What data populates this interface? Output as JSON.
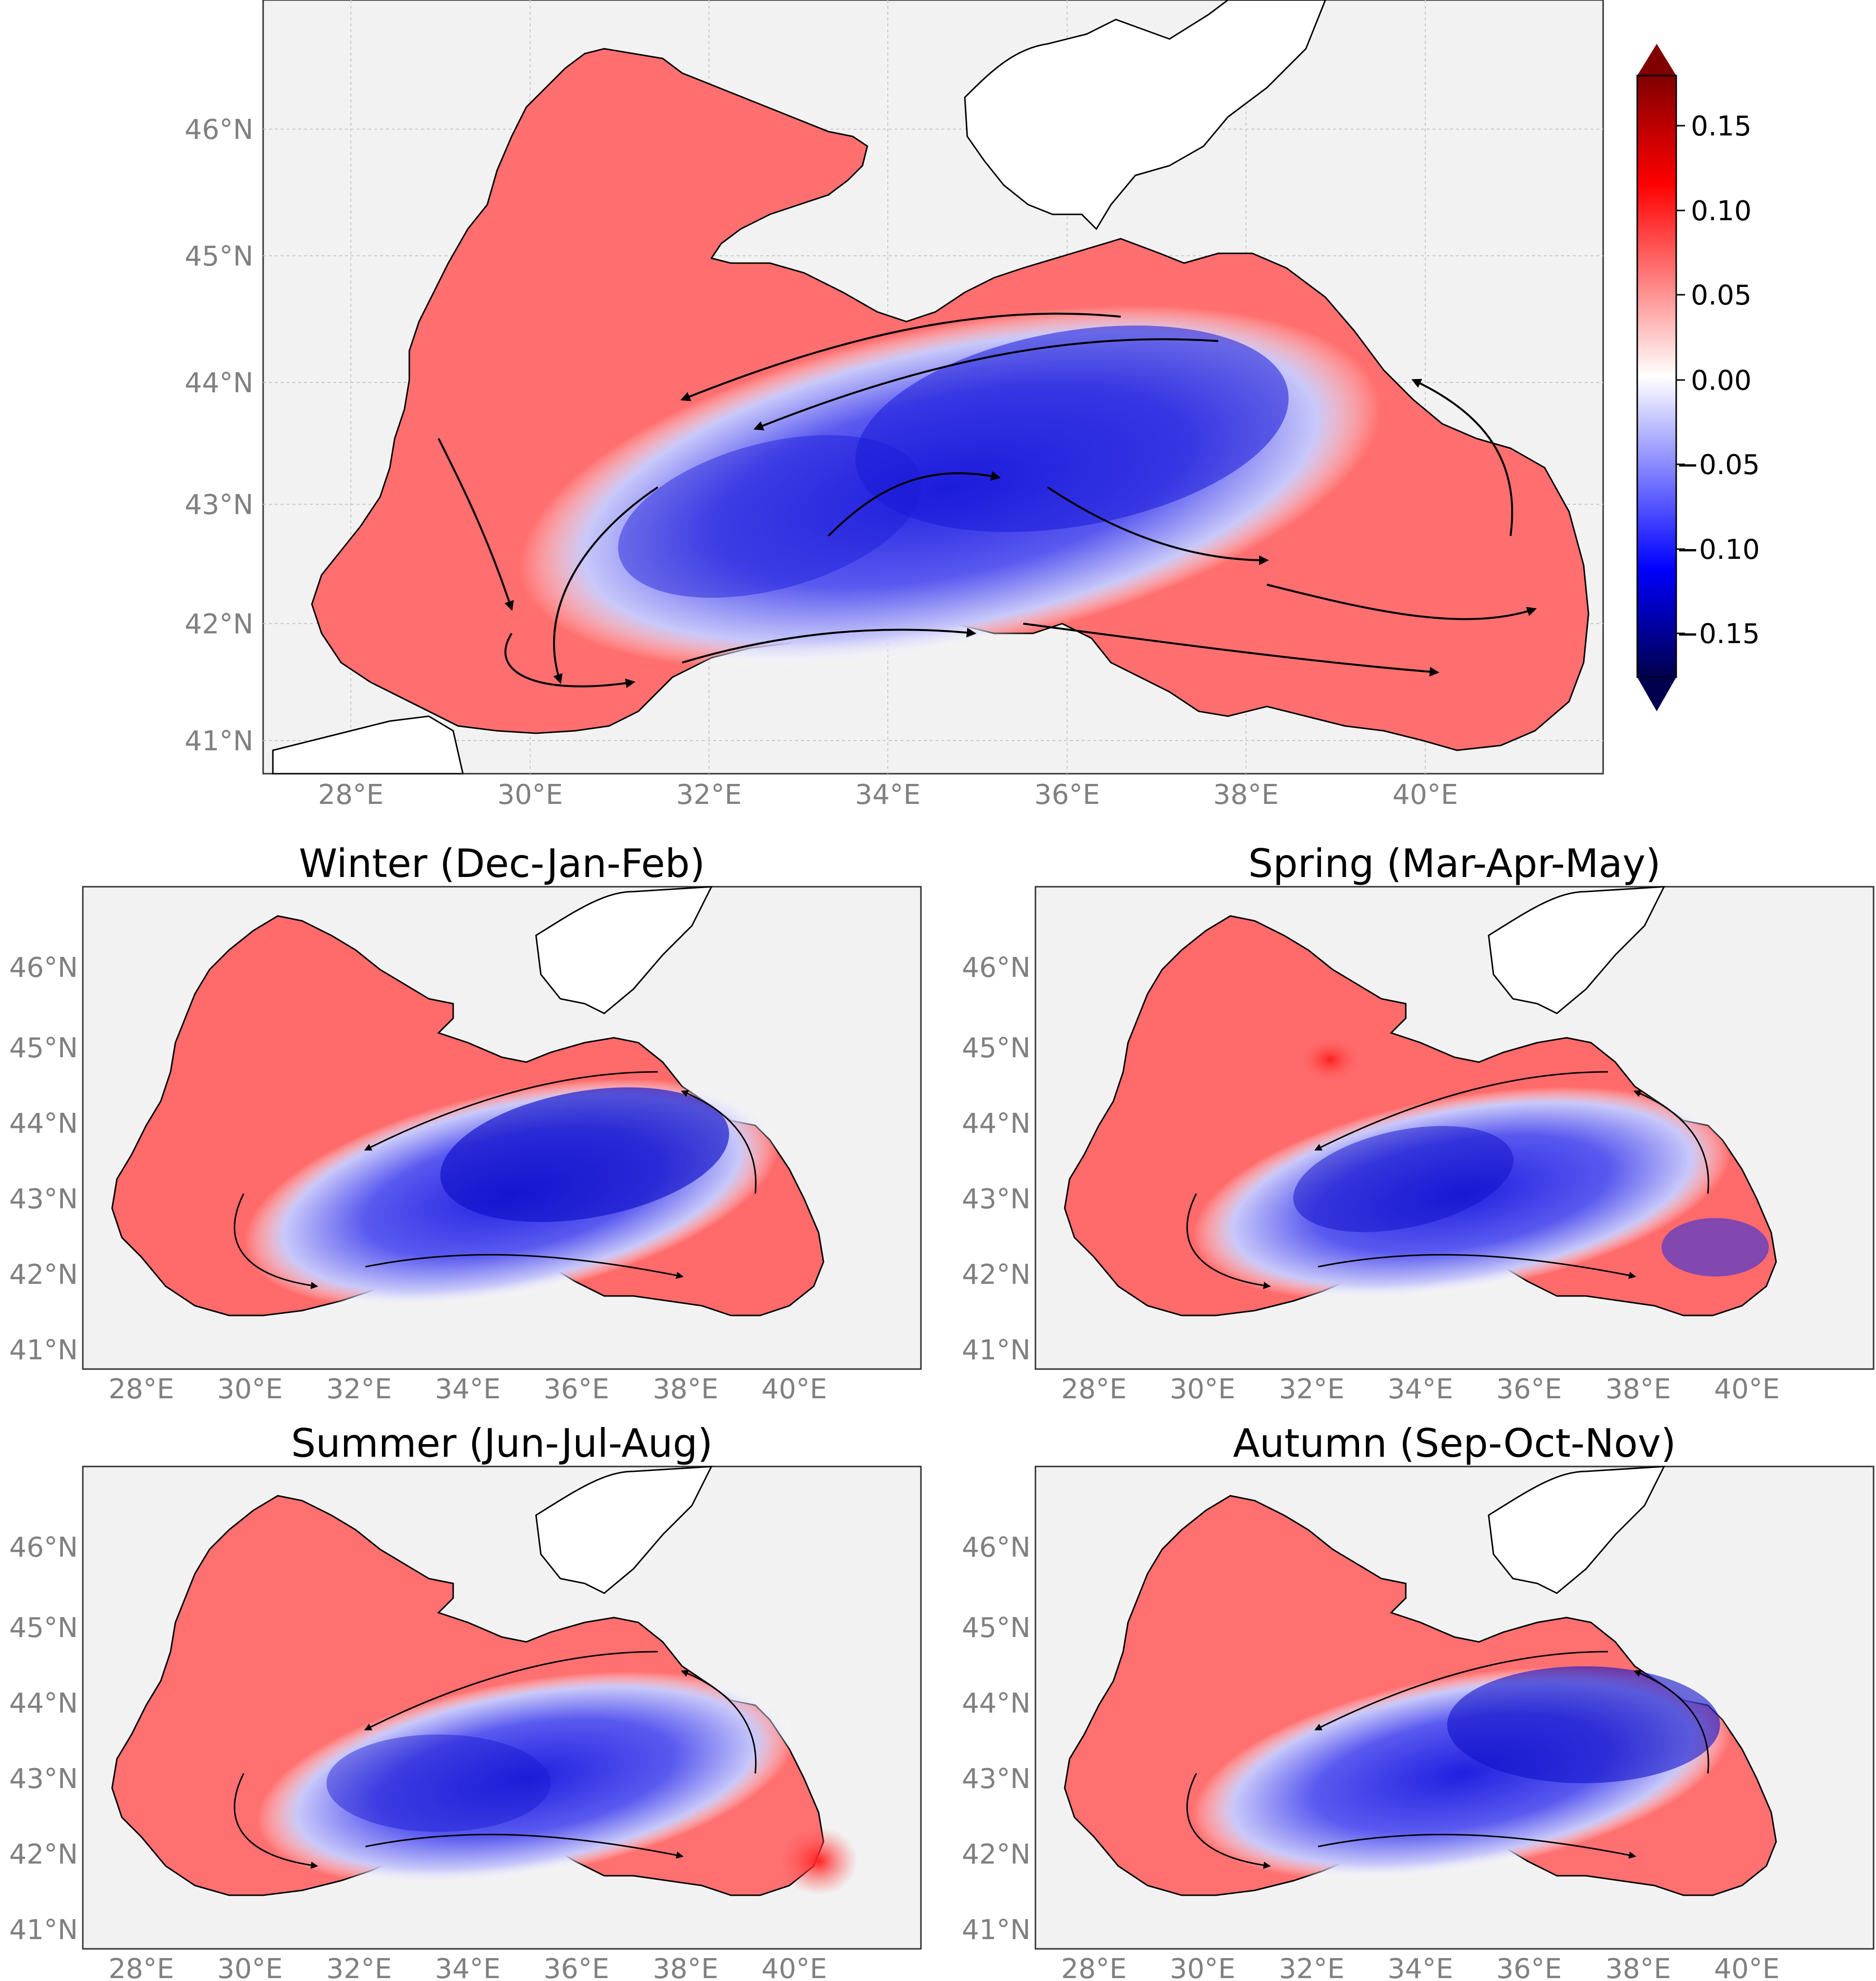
{
  "figure": {
    "colorbar": {
      "colormap": "seismic",
      "range": [
        -0.175,
        0.175
      ],
      "ticks": [
        0.15,
        0.1,
        0.05,
        0.0,
        -0.05,
        -0.1,
        -0.15
      ],
      "tick_labels": [
        "0.15",
        "0.10",
        "0.05",
        "0.00",
        "−0.05",
        "−0.10",
        "−0.15"
      ],
      "extend": "both",
      "colors": {
        "low": "#00004c",
        "mid": "#ffffff",
        "high": "#800000"
      }
    },
    "map_style": {
      "sea_background": "#f2f2f2",
      "land": "#ffffff",
      "coastline": "#000000",
      "grid": "#c8c8c8",
      "vector_color": "#000000"
    },
    "lon_labels": [
      "28°E",
      "30°E",
      "32°E",
      "34°E",
      "36°E",
      "38°E",
      "40°E"
    ],
    "lat_labels": [
      "41°N",
      "42°N",
      "43°N",
      "44°N",
      "45°N",
      "46°N"
    ],
    "panels": [
      {
        "id": "annual",
        "title": ""
      },
      {
        "id": "winter",
        "title": "Winter (Dec-Jan-Feb)"
      },
      {
        "id": "spring",
        "title": "Spring (Mar-Apr-May)"
      },
      {
        "id": "summer",
        "title": "Summer (Jun-Jul-Aug)"
      },
      {
        "id": "autumn",
        "title": "Autumn (Sep-Oct-Nov)"
      }
    ]
  }
}
